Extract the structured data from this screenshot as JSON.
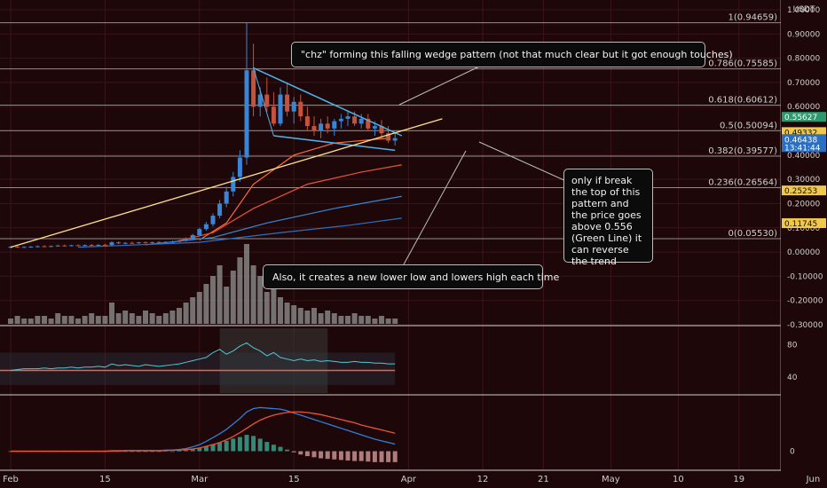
{
  "header": {
    "currency": "USDT"
  },
  "colors": {
    "background": "#1d0708",
    "grid": "#3a1518",
    "candle_up": "#3a86d6",
    "candle_down": "#c4533d",
    "wedge": "#4fb3e8",
    "trend_line": "#ffe08a",
    "rsi_line": "#52c7d8",
    "rsi_band": "#2e3f4c",
    "macd_line": "#2e7fd8",
    "signal_line": "#e8543a",
    "volume": "#8c8c8c"
  },
  "annotations": {
    "title_callout": "\"chz\" forming this falling wedge pattern (not that much clear but it got enough touches)",
    "right_callout": "only if break the top of this pattern and the price goes above 0.556 (Green Line) it can reverse the trend",
    "bottom_callout": "Also, it creates a new lower low and lowers high each time"
  },
  "chart_data": [
    {
      "type": "candlestick",
      "panel": "price",
      "ylim": [
        -0.3,
        1.0
      ],
      "y_ticks": [
        "1.00000",
        "0.90000",
        "0.80000",
        "0.70000",
        "0.60000",
        "0.50000",
        "0.40000",
        "0.30000",
        "0.20000",
        "0.10000",
        "0.00000",
        "-0.10000",
        "-0.20000",
        "-0.30000"
      ],
      "x_ticks": [
        "Feb",
        "15",
        "Mar",
        "15",
        "Apr",
        "12",
        "21",
        "May",
        "10",
        "19",
        "Jun"
      ],
      "x_tick_days": [
        0,
        14,
        28,
        42,
        59,
        70,
        79,
        89,
        99,
        108,
        119
      ],
      "candles": [
        {
          "day": 0,
          "o": 0.02,
          "h": 0.025,
          "l": 0.015,
          "c": 0.022
        },
        {
          "day": 1,
          "o": 0.022,
          "h": 0.026,
          "l": 0.018,
          "c": 0.02
        },
        {
          "day": 2,
          "o": 0.02,
          "h": 0.024,
          "l": 0.017,
          "c": 0.021
        },
        {
          "day": 3,
          "o": 0.021,
          "h": 0.025,
          "l": 0.018,
          "c": 0.022
        },
        {
          "day": 4,
          "o": 0.022,
          "h": 0.027,
          "l": 0.019,
          "c": 0.024
        },
        {
          "day": 5,
          "o": 0.024,
          "h": 0.028,
          "l": 0.02,
          "c": 0.023
        },
        {
          "day": 6,
          "o": 0.023,
          "h": 0.027,
          "l": 0.02,
          "c": 0.025
        },
        {
          "day": 7,
          "o": 0.025,
          "h": 0.03,
          "l": 0.022,
          "c": 0.027
        },
        {
          "day": 8,
          "o": 0.027,
          "h": 0.031,
          "l": 0.023,
          "c": 0.026
        },
        {
          "day": 9,
          "o": 0.026,
          "h": 0.03,
          "l": 0.023,
          "c": 0.028
        },
        {
          "day": 10,
          "o": 0.028,
          "h": 0.032,
          "l": 0.024,
          "c": 0.027
        },
        {
          "day": 11,
          "o": 0.027,
          "h": 0.031,
          "l": 0.024,
          "c": 0.029
        },
        {
          "day": 12,
          "o": 0.029,
          "h": 0.033,
          "l": 0.025,
          "c": 0.028
        },
        {
          "day": 13,
          "o": 0.028,
          "h": 0.032,
          "l": 0.025,
          "c": 0.03
        },
        {
          "day": 14,
          "o": 0.03,
          "h": 0.034,
          "l": 0.026,
          "c": 0.029
        },
        {
          "day": 15,
          "o": 0.029,
          "h": 0.045,
          "l": 0.027,
          "c": 0.04
        },
        {
          "day": 16,
          "o": 0.04,
          "h": 0.044,
          "l": 0.033,
          "c": 0.036
        },
        {
          "day": 17,
          "o": 0.036,
          "h": 0.041,
          "l": 0.032,
          "c": 0.038
        },
        {
          "day": 18,
          "o": 0.038,
          "h": 0.043,
          "l": 0.034,
          "c": 0.037
        },
        {
          "day": 19,
          "o": 0.037,
          "h": 0.042,
          "l": 0.034,
          "c": 0.04
        },
        {
          "day": 20,
          "o": 0.04,
          "h": 0.044,
          "l": 0.036,
          "c": 0.039
        },
        {
          "day": 21,
          "o": 0.039,
          "h": 0.043,
          "l": 0.035,
          "c": 0.041
        },
        {
          "day": 22,
          "o": 0.041,
          "h": 0.045,
          "l": 0.037,
          "c": 0.04
        },
        {
          "day": 23,
          "o": 0.04,
          "h": 0.044,
          "l": 0.036,
          "c": 0.042
        },
        {
          "day": 24,
          "o": 0.042,
          "h": 0.047,
          "l": 0.038,
          "c": 0.044
        },
        {
          "day": 25,
          "o": 0.044,
          "h": 0.05,
          "l": 0.04,
          "c": 0.046
        },
        {
          "day": 26,
          "o": 0.046,
          "h": 0.06,
          "l": 0.043,
          "c": 0.055
        },
        {
          "day": 27,
          "o": 0.055,
          "h": 0.075,
          "l": 0.05,
          "c": 0.07
        },
        {
          "day": 28,
          "o": 0.07,
          "h": 0.1,
          "l": 0.065,
          "c": 0.095
        },
        {
          "day": 29,
          "o": 0.095,
          "h": 0.125,
          "l": 0.088,
          "c": 0.115
        },
        {
          "day": 30,
          "o": 0.115,
          "h": 0.16,
          "l": 0.105,
          "c": 0.15
        },
        {
          "day": 31,
          "o": 0.15,
          "h": 0.215,
          "l": 0.14,
          "c": 0.2
        },
        {
          "day": 32,
          "o": 0.2,
          "h": 0.27,
          "l": 0.185,
          "c": 0.25
        },
        {
          "day": 33,
          "o": 0.25,
          "h": 0.33,
          "l": 0.23,
          "c": 0.31
        },
        {
          "day": 34,
          "o": 0.31,
          "h": 0.42,
          "l": 0.29,
          "c": 0.39
        },
        {
          "day": 35,
          "o": 0.39,
          "h": 0.946,
          "l": 0.36,
          "c": 0.75
        },
        {
          "day": 36,
          "o": 0.75,
          "h": 0.86,
          "l": 0.56,
          "c": 0.6
        },
        {
          "day": 37,
          "o": 0.6,
          "h": 0.68,
          "l": 0.56,
          "c": 0.65
        },
        {
          "day": 38,
          "o": 0.65,
          "h": 0.72,
          "l": 0.58,
          "c": 0.6
        },
        {
          "day": 39,
          "o": 0.6,
          "h": 0.66,
          "l": 0.52,
          "c": 0.53
        },
        {
          "day": 40,
          "o": 0.53,
          "h": 0.68,
          "l": 0.52,
          "c": 0.65
        },
        {
          "day": 41,
          "o": 0.65,
          "h": 0.7,
          "l": 0.56,
          "c": 0.58
        },
        {
          "day": 42,
          "o": 0.58,
          "h": 0.64,
          "l": 0.53,
          "c": 0.62
        },
        {
          "day": 43,
          "o": 0.62,
          "h": 0.65,
          "l": 0.54,
          "c": 0.56
        },
        {
          "day": 44,
          "o": 0.56,
          "h": 0.6,
          "l": 0.5,
          "c": 0.52
        },
        {
          "day": 45,
          "o": 0.52,
          "h": 0.56,
          "l": 0.48,
          "c": 0.5
        },
        {
          "day": 46,
          "o": 0.5,
          "h": 0.55,
          "l": 0.47,
          "c": 0.53
        },
        {
          "day": 47,
          "o": 0.53,
          "h": 0.56,
          "l": 0.49,
          "c": 0.51
        },
        {
          "day": 48,
          "o": 0.51,
          "h": 0.55,
          "l": 0.48,
          "c": 0.54
        },
        {
          "day": 49,
          "o": 0.54,
          "h": 0.57,
          "l": 0.51,
          "c": 0.55
        },
        {
          "day": 50,
          "o": 0.55,
          "h": 0.58,
          "l": 0.52,
          "c": 0.56
        },
        {
          "day": 51,
          "o": 0.56,
          "h": 0.58,
          "l": 0.52,
          "c": 0.53
        },
        {
          "day": 52,
          "o": 0.53,
          "h": 0.57,
          "l": 0.51,
          "c": 0.55
        },
        {
          "day": 53,
          "o": 0.55,
          "h": 0.57,
          "l": 0.5,
          "c": 0.51
        },
        {
          "day": 54,
          "o": 0.51,
          "h": 0.54,
          "l": 0.48,
          "c": 0.52
        },
        {
          "day": 55,
          "o": 0.52,
          "h": 0.545,
          "l": 0.47,
          "c": 0.49
        },
        {
          "day": 56,
          "o": 0.49,
          "h": 0.52,
          "l": 0.45,
          "c": 0.46
        },
        {
          "day": 57,
          "o": 0.46,
          "h": 0.49,
          "l": 0.44,
          "c": 0.47
        }
      ],
      "fib_levels": [
        {
          "label": "1(0.94659)",
          "value": 0.94659
        },
        {
          "label": "0.786(0.75585)",
          "value": 0.75585
        },
        {
          "label": "0.618(0.60612)",
          "value": 0.60612
        },
        {
          "label": "0.5(0.50094)",
          "value": 0.50094
        },
        {
          "label": "0.382(0.39577)",
          "value": 0.39577
        },
        {
          "label": "0.236(0.26564)",
          "value": 0.26564
        },
        {
          "label": "0(0.05530)",
          "value": 0.0553
        }
      ],
      "price_badges": [
        {
          "text": "0.55627",
          "value": 0.55627,
          "color": "#2a9a70"
        },
        {
          "text": "0.49332",
          "value": 0.49332,
          "color": "#f0c94a"
        },
        {
          "text": "0.46438",
          "value": 0.46438,
          "color": "#2a6fc0",
          "sub": "13:41:44"
        },
        {
          "text": "0.25253",
          "value": 0.25253,
          "color": "#f0c94a"
        },
        {
          "text": "0.11745",
          "value": 0.11745,
          "color": "#f0c94a"
        }
      ],
      "wedge_upper": [
        [
          36,
          0.76
        ],
        [
          58,
          0.48
        ]
      ],
      "wedge_lower": [
        [
          39,
          0.48
        ],
        [
          57,
          0.42
        ]
      ],
      "trend_line": [
        [
          0,
          0.02
        ],
        [
          64,
          0.55
        ]
      ],
      "moving_averages": [
        {
          "color": "#ff6a3d",
          "points": [
            [
              28,
              0.05
            ],
            [
              32,
              0.12
            ],
            [
              36,
              0.28
            ],
            [
              42,
              0.4
            ],
            [
              48,
              0.45
            ],
            [
              56,
              0.47
            ]
          ]
        },
        {
          "color": "#e8543a",
          "points": [
            [
              24,
              0.04
            ],
            [
              30,
              0.08
            ],
            [
              36,
              0.18
            ],
            [
              44,
              0.28
            ],
            [
              52,
              0.33
            ],
            [
              58,
              0.36
            ]
          ]
        },
        {
          "color": "#3a86d6",
          "points": [
            [
              20,
              0.03
            ],
            [
              30,
              0.06
            ],
            [
              38,
              0.12
            ],
            [
              48,
              0.18
            ],
            [
              58,
              0.23
            ]
          ]
        },
        {
          "color": "#2e6fc0",
          "points": [
            [
              10,
              0.02
            ],
            [
              28,
              0.04
            ],
            [
              40,
              0.08
            ],
            [
              50,
              0.11
            ],
            [
              58,
              0.14
            ]
          ]
        }
      ],
      "volume": [
        2,
        3,
        2,
        2,
        3,
        3,
        2,
        4,
        3,
        3,
        2,
        3,
        4,
        3,
        3,
        8,
        4,
        5,
        4,
        3,
        5,
        4,
        3,
        4,
        5,
        6,
        8,
        10,
        12,
        15,
        18,
        22,
        14,
        20,
        25,
        30,
        22,
        18,
        12,
        15,
        10,
        8,
        7,
        6,
        5,
        6,
        4,
        5,
        4,
        3,
        3,
        4,
        3,
        3,
        2,
        3,
        2,
        2
      ]
    },
    {
      "type": "line",
      "panel": "rsi",
      "ylim": [
        20,
        100
      ],
      "y_ticks": [
        "80",
        "40"
      ],
      "series_color": "#52c7d8",
      "level_line": 50,
      "overbought": 70,
      "oversold": 30,
      "values": [
        48,
        49,
        50,
        50,
        50,
        51,
        50,
        51,
        51,
        52,
        51,
        52,
        52,
        53,
        52,
        56,
        54,
        55,
        54,
        53,
        55,
        54,
        53,
        54,
        55,
        56,
        58,
        60,
        62,
        64,
        70,
        74,
        68,
        72,
        78,
        82,
        76,
        72,
        66,
        70,
        64,
        62,
        60,
        62,
        60,
        61,
        59,
        60,
        59,
        58,
        58,
        59,
        58,
        58,
        57,
        57,
        56,
        56
      ]
    },
    {
      "type": "line",
      "panel": "macd",
      "ylim": [
        -0.03,
        0.1
      ],
      "y_ticks": [
        "0"
      ],
      "macd": [
        0,
        0,
        0,
        0,
        0,
        0,
        0,
        0,
        0,
        0,
        0,
        0,
        0,
        0,
        0,
        0.001,
        0.001,
        0.001,
        0.001,
        0.001,
        0.001,
        0.001,
        0.001,
        0.002,
        0.002,
        0.003,
        0.005,
        0.008,
        0.012,
        0.018,
        0.025,
        0.032,
        0.04,
        0.05,
        0.06,
        0.072,
        0.078,
        0.08,
        0.079,
        0.078,
        0.077,
        0.074,
        0.07,
        0.066,
        0.062,
        0.058,
        0.054,
        0.05,
        0.046,
        0.042,
        0.038,
        0.034,
        0.03,
        0.026,
        0.022,
        0.019,
        0.016,
        0.013
      ],
      "signal": [
        0,
        0,
        0,
        0,
        0,
        0,
        0,
        0,
        0,
        0,
        0,
        0,
        0,
        0,
        0,
        0,
        0,
        0.001,
        0.001,
        0.001,
        0.001,
        0.001,
        0.001,
        0.001,
        0.002,
        0.002,
        0.003,
        0.004,
        0.006,
        0.009,
        0.012,
        0.016,
        0.021,
        0.027,
        0.034,
        0.042,
        0.05,
        0.057,
        0.062,
        0.066,
        0.069,
        0.071,
        0.072,
        0.072,
        0.071,
        0.069,
        0.067,
        0.064,
        0.061,
        0.058,
        0.055,
        0.052,
        0.048,
        0.045,
        0.042,
        0.039,
        0.036,
        0.033
      ],
      "histogram": [
        0,
        0,
        0,
        0,
        0,
        0,
        0,
        0,
        0,
        0,
        0,
        0,
        0,
        0,
        0,
        0.001,
        0.001,
        0,
        0,
        0,
        0,
        0,
        0,
        0.001,
        0,
        0.001,
        0.002,
        0.004,
        0.006,
        0.009,
        0.013,
        0.016,
        0.019,
        0.023,
        0.026,
        0.03,
        0.028,
        0.023,
        0.017,
        0.012,
        0.008,
        0.003,
        -0.002,
        -0.006,
        -0.009,
        -0.011,
        -0.013,
        -0.014,
        -0.015,
        -0.016,
        -0.017,
        -0.018,
        -0.018,
        -0.019,
        -0.02,
        -0.02,
        -0.02,
        -0.02
      ]
    }
  ]
}
